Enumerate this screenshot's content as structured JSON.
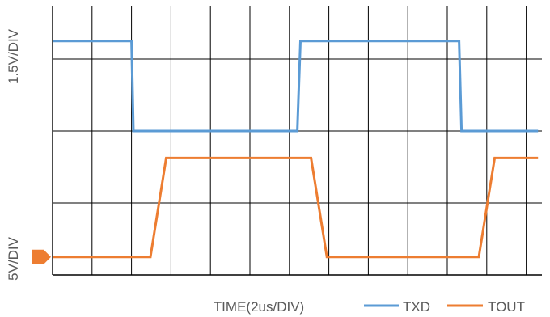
{
  "chart_data": {
    "type": "line",
    "x_label": "TIME(2us/DIV)",
    "xlim": [
      0,
      12.3
    ],
    "x_unit": "DIV",
    "grid": true,
    "legend_position": "bottom-right",
    "series": [
      {
        "name": "TXD",
        "color": "#5B9BD5",
        "axis_label": "1.5V/DIV",
        "x": [
          0,
          2.0,
          2.05,
          6.2,
          6.28,
          10.3,
          10.36,
          12.3
        ],
        "y": [
          6.5,
          6.5,
          4.0,
          4.0,
          6.5,
          6.5,
          4.0,
          4.0
        ]
      },
      {
        "name": "TOUT",
        "color": "#ED7D31",
        "axis_label": "5V/DIV",
        "ground_marker_color": "#ED7D31",
        "x": [
          0,
          2.48,
          2.88,
          6.55,
          6.95,
          10.8,
          11.2,
          12.3
        ],
        "y": [
          0.5,
          0.5,
          3.25,
          3.25,
          0.5,
          0.5,
          3.25,
          3.25
        ]
      }
    ]
  }
}
